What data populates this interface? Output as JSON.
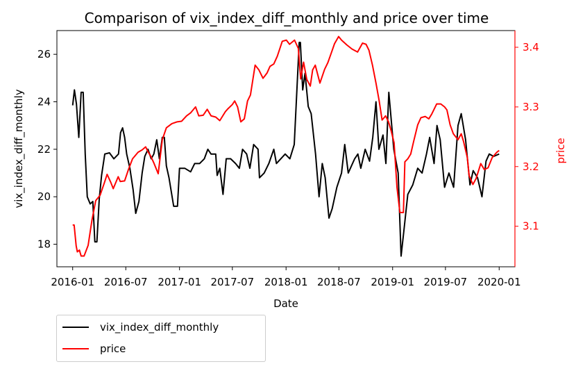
{
  "chart_data": {
    "type": "line",
    "title": "Comparison of vix_index_diff_monthly and price over time",
    "xlabel": "Date",
    "x_range": [
      "2015-11-08",
      "2020-02-24"
    ],
    "x_ticks": [
      "2016-01",
      "2016-07",
      "2017-01",
      "2017-07",
      "2018-01",
      "2018-07",
      "2019-01",
      "2019-07",
      "2020-01"
    ],
    "grid": false,
    "legend_position": "below-left",
    "left_axis": {
      "label": "vix_index_diff_monthly",
      "color": "#000000",
      "ylim": [
        17.05,
        27.0
      ],
      "ticks": [
        "18",
        "20",
        "22",
        "24",
        "26"
      ]
    },
    "right_axis": {
      "label": "price",
      "color": "#ff0000",
      "ylim": [
        3.032,
        3.428
      ],
      "ticks": [
        "3.1",
        "3.2",
        "3.3",
        "3.4"
      ]
    },
    "series": [
      {
        "name": "vix_index_diff_monthly",
        "axis": "left",
        "color": "#000000",
        "points": [
          [
            "2016-01-01",
            23.85
          ],
          [
            "2016-01-07",
            24.5
          ],
          [
            "2016-01-14",
            23.9
          ],
          [
            "2016-01-22",
            22.5
          ],
          [
            "2016-01-30",
            24.4
          ],
          [
            "2016-02-06",
            24.4
          ],
          [
            "2016-02-13",
            21.8
          ],
          [
            "2016-02-20",
            20.0
          ],
          [
            "2016-03-01",
            19.7
          ],
          [
            "2016-03-10",
            19.8
          ],
          [
            "2016-03-17",
            18.1
          ],
          [
            "2016-03-24",
            18.1
          ],
          [
            "2016-04-01",
            19.9
          ],
          [
            "2016-04-09",
            20.9
          ],
          [
            "2016-04-20",
            21.8
          ],
          [
            "2016-05-06",
            21.85
          ],
          [
            "2016-05-21",
            21.6
          ],
          [
            "2016-06-06",
            21.8
          ],
          [
            "2016-06-13",
            22.7
          ],
          [
            "2016-06-20",
            22.9
          ],
          [
            "2016-06-27",
            22.5
          ],
          [
            "2016-07-04",
            21.8
          ],
          [
            "2016-07-15",
            21.2
          ],
          [
            "2016-07-26",
            20.3
          ],
          [
            "2016-08-04",
            19.3
          ],
          [
            "2016-08-15",
            19.8
          ],
          [
            "2016-08-26",
            21.0
          ],
          [
            "2016-09-04",
            21.7
          ],
          [
            "2016-09-15",
            22.0
          ],
          [
            "2016-09-26",
            21.6
          ],
          [
            "2016-10-05",
            21.8
          ],
          [
            "2016-10-15",
            22.4
          ],
          [
            "2016-10-24",
            21.6
          ],
          [
            "2016-11-03",
            22.5
          ],
          [
            "2016-11-10",
            22.5
          ],
          [
            "2016-11-17",
            21.3
          ],
          [
            "2016-11-26",
            20.8
          ],
          [
            "2016-12-12",
            19.6
          ],
          [
            "2016-12-25",
            19.6
          ],
          [
            "2017-01-01",
            21.2
          ],
          [
            "2017-01-19",
            21.2
          ],
          [
            "2017-02-08",
            21.05
          ],
          [
            "2017-02-22",
            21.4
          ],
          [
            "2017-03-11",
            21.4
          ],
          [
            "2017-03-27",
            21.6
          ],
          [
            "2017-04-08",
            22.0
          ],
          [
            "2017-04-19",
            21.8
          ],
          [
            "2017-05-05",
            21.8
          ],
          [
            "2017-05-10",
            20.9
          ],
          [
            "2017-05-19",
            21.2
          ],
          [
            "2017-05-30",
            20.1
          ],
          [
            "2017-06-10",
            21.6
          ],
          [
            "2017-06-25",
            21.6
          ],
          [
            "2017-07-12",
            21.4
          ],
          [
            "2017-07-25",
            21.2
          ],
          [
            "2017-08-05",
            22.0
          ],
          [
            "2017-08-19",
            21.8
          ],
          [
            "2017-08-30",
            21.2
          ],
          [
            "2017-09-12",
            22.2
          ],
          [
            "2017-09-27",
            22.0
          ],
          [
            "2017-10-02",
            20.8
          ],
          [
            "2017-10-18",
            21.0
          ],
          [
            "2017-11-03",
            21.4
          ],
          [
            "2017-11-20",
            22.0
          ],
          [
            "2017-11-29",
            21.4
          ],
          [
            "2017-12-14",
            21.6
          ],
          [
            "2017-12-29",
            21.8
          ],
          [
            "2018-01-14",
            21.6
          ],
          [
            "2018-01-29",
            22.2
          ],
          [
            "2018-02-15",
            26.5
          ],
          [
            "2018-02-19",
            26.5
          ],
          [
            "2018-02-27",
            24.5
          ],
          [
            "2018-03-07",
            25.2
          ],
          [
            "2018-03-18",
            23.8
          ],
          [
            "2018-03-28",
            23.5
          ],
          [
            "2018-04-12",
            21.8
          ],
          [
            "2018-04-24",
            20.0
          ],
          [
            "2018-05-05",
            21.4
          ],
          [
            "2018-05-15",
            20.8
          ],
          [
            "2018-05-28",
            19.1
          ],
          [
            "2018-06-08",
            19.5
          ],
          [
            "2018-06-24",
            20.4
          ],
          [
            "2018-07-10",
            21.0
          ],
          [
            "2018-07-21",
            22.2
          ],
          [
            "2018-08-02",
            21.0
          ],
          [
            "2018-08-24",
            21.6
          ],
          [
            "2018-09-04",
            21.8
          ],
          [
            "2018-09-14",
            21.2
          ],
          [
            "2018-09-29",
            22.0
          ],
          [
            "2018-10-14",
            21.5
          ],
          [
            "2018-10-25",
            22.5
          ],
          [
            "2018-11-05",
            24.0
          ],
          [
            "2018-11-15",
            22.0
          ],
          [
            "2018-11-29",
            22.6
          ],
          [
            "2018-12-09",
            21.4
          ],
          [
            "2018-12-19",
            24.4
          ],
          [
            "2019-01-05",
            22.0
          ],
          [
            "2019-01-20",
            21.0
          ],
          [
            "2019-01-30",
            17.5
          ],
          [
            "2019-02-08",
            18.5
          ],
          [
            "2019-02-22",
            20.1
          ],
          [
            "2019-03-11",
            20.5
          ],
          [
            "2019-03-28",
            21.2
          ],
          [
            "2019-04-12",
            21.0
          ],
          [
            "2019-04-27",
            21.8
          ],
          [
            "2019-05-08",
            22.5
          ],
          [
            "2019-05-23",
            21.4
          ],
          [
            "2019-06-02",
            23.0
          ],
          [
            "2019-06-13",
            22.4
          ],
          [
            "2019-06-28",
            20.4
          ],
          [
            "2019-07-13",
            21.0
          ],
          [
            "2019-07-29",
            20.4
          ],
          [
            "2019-08-13",
            23.0
          ],
          [
            "2019-08-24",
            23.5
          ],
          [
            "2019-09-08",
            22.4
          ],
          [
            "2019-09-23",
            20.5
          ],
          [
            "2019-10-04",
            21.1
          ],
          [
            "2019-10-19",
            20.8
          ],
          [
            "2019-11-03",
            20.0
          ],
          [
            "2019-11-17",
            21.5
          ],
          [
            "2019-11-28",
            21.8
          ],
          [
            "2019-12-13",
            21.7
          ],
          [
            "2020-01-01",
            21.8
          ]
        ]
      },
      {
        "name": "price",
        "axis": "right",
        "color": "#ff0000",
        "points": [
          [
            "2016-01-01",
            3.102
          ],
          [
            "2016-01-06",
            3.102
          ],
          [
            "2016-01-13",
            3.067
          ],
          [
            "2016-01-17",
            3.057
          ],
          [
            "2016-01-24",
            3.06
          ],
          [
            "2016-01-30",
            3.05
          ],
          [
            "2016-02-09",
            3.05
          ],
          [
            "2016-02-23",
            3.068
          ],
          [
            "2016-03-07",
            3.11
          ],
          [
            "2016-03-20",
            3.143
          ],
          [
            "2016-04-04",
            3.152
          ],
          [
            "2016-04-18",
            3.172
          ],
          [
            "2016-04-28",
            3.187
          ],
          [
            "2016-05-11",
            3.173
          ],
          [
            "2016-05-19",
            3.163
          ],
          [
            "2016-06-05",
            3.183
          ],
          [
            "2016-06-12",
            3.175
          ],
          [
            "2016-06-27",
            3.176
          ],
          [
            "2016-07-10",
            3.195
          ],
          [
            "2016-07-24",
            3.213
          ],
          [
            "2016-08-12",
            3.224
          ],
          [
            "2016-08-26",
            3.228
          ],
          [
            "2016-09-07",
            3.233
          ],
          [
            "2016-09-15",
            3.225
          ],
          [
            "2016-09-25",
            3.217
          ],
          [
            "2016-10-06",
            3.205
          ],
          [
            "2016-10-20",
            3.188
          ],
          [
            "2016-11-03",
            3.245
          ],
          [
            "2016-11-17",
            3.265
          ],
          [
            "2016-12-06",
            3.272
          ],
          [
            "2016-12-24",
            3.275
          ],
          [
            "2017-01-08",
            3.276
          ],
          [
            "2017-01-25",
            3.285
          ],
          [
            "2017-02-08",
            3.29
          ],
          [
            "2017-02-25",
            3.3
          ],
          [
            "2017-03-08",
            3.285
          ],
          [
            "2017-03-23",
            3.286
          ],
          [
            "2017-04-06",
            3.296
          ],
          [
            "2017-04-19",
            3.285
          ],
          [
            "2017-05-05",
            3.283
          ],
          [
            "2017-05-19",
            3.277
          ],
          [
            "2017-06-07",
            3.292
          ],
          [
            "2017-06-16",
            3.297
          ],
          [
            "2017-07-01",
            3.304
          ],
          [
            "2017-07-09",
            3.31
          ],
          [
            "2017-07-19",
            3.3
          ],
          [
            "2017-07-30",
            3.275
          ],
          [
            "2017-08-11",
            3.28
          ],
          [
            "2017-08-22",
            3.31
          ],
          [
            "2017-09-01",
            3.32
          ],
          [
            "2017-09-17",
            3.37
          ],
          [
            "2017-09-30",
            3.362
          ],
          [
            "2017-10-14",
            3.348
          ],
          [
            "2017-10-28",
            3.357
          ],
          [
            "2017-11-07",
            3.368
          ],
          [
            "2017-11-20",
            3.372
          ],
          [
            "2017-12-02",
            3.385
          ],
          [
            "2017-12-19",
            3.41
          ],
          [
            "2018-01-02",
            3.412
          ],
          [
            "2018-01-13",
            3.405
          ],
          [
            "2018-01-30",
            3.412
          ],
          [
            "2018-02-12",
            3.398
          ],
          [
            "2018-02-20",
            3.347
          ],
          [
            "2018-03-02",
            3.375
          ],
          [
            "2018-03-13",
            3.346
          ],
          [
            "2018-03-25",
            3.335
          ],
          [
            "2018-04-02",
            3.362
          ],
          [
            "2018-04-11",
            3.37
          ],
          [
            "2018-04-27",
            3.34
          ],
          [
            "2018-05-13",
            3.363
          ],
          [
            "2018-05-24",
            3.374
          ],
          [
            "2018-06-06",
            3.392
          ],
          [
            "2018-06-16",
            3.406
          ],
          [
            "2018-06-30",
            3.418
          ],
          [
            "2018-07-10",
            3.412
          ],
          [
            "2018-07-28",
            3.404
          ],
          [
            "2018-08-15",
            3.397
          ],
          [
            "2018-09-03",
            3.392
          ],
          [
            "2018-09-20",
            3.407
          ],
          [
            "2018-10-02",
            3.405
          ],
          [
            "2018-10-12",
            3.395
          ],
          [
            "2018-10-24",
            3.37
          ],
          [
            "2018-11-05",
            3.34
          ],
          [
            "2018-11-16",
            3.31
          ],
          [
            "2018-11-26",
            3.278
          ],
          [
            "2018-12-08",
            3.285
          ],
          [
            "2018-12-18",
            3.275
          ],
          [
            "2018-12-27",
            3.26
          ],
          [
            "2019-01-06",
            3.24
          ],
          [
            "2019-01-16",
            3.165
          ],
          [
            "2019-01-26",
            3.123
          ],
          [
            "2019-02-07",
            3.123
          ],
          [
            "2019-02-12",
            3.208
          ],
          [
            "2019-02-22",
            3.213
          ],
          [
            "2019-03-04",
            3.221
          ],
          [
            "2019-03-14",
            3.242
          ],
          [
            "2019-03-28",
            3.27
          ],
          [
            "2019-04-08",
            3.282
          ],
          [
            "2019-04-23",
            3.284
          ],
          [
            "2019-05-05",
            3.28
          ],
          [
            "2019-05-15",
            3.288
          ],
          [
            "2019-06-01",
            3.305
          ],
          [
            "2019-06-15",
            3.305
          ],
          [
            "2019-06-28",
            3.3
          ],
          [
            "2019-07-06",
            3.295
          ],
          [
            "2019-07-17",
            3.27
          ],
          [
            "2019-07-28",
            3.255
          ],
          [
            "2019-08-13",
            3.245
          ],
          [
            "2019-08-24",
            3.255
          ],
          [
            "2019-09-01",
            3.242
          ],
          [
            "2019-09-14",
            3.215
          ],
          [
            "2019-09-20",
            3.185
          ],
          [
            "2019-10-03",
            3.17
          ],
          [
            "2019-10-14",
            3.18
          ],
          [
            "2019-10-30",
            3.205
          ],
          [
            "2019-11-11",
            3.195
          ],
          [
            "2019-11-24",
            3.198
          ],
          [
            "2019-12-08",
            3.215
          ],
          [
            "2019-12-24",
            3.224
          ],
          [
            "2020-01-01",
            3.227
          ]
        ]
      }
    ]
  }
}
